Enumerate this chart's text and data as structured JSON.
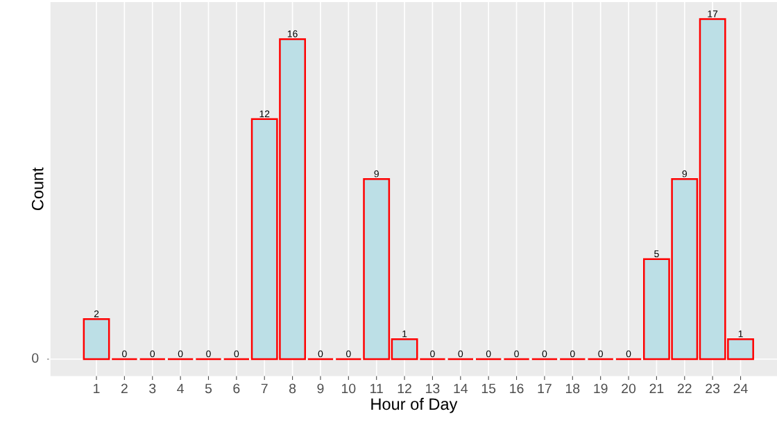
{
  "chart_data": {
    "type": "bar",
    "xlabel": "Hour of Day",
    "ylabel": "Count",
    "categories": [
      "1",
      "2",
      "3",
      "4",
      "5",
      "6",
      "7",
      "8",
      "9",
      "10",
      "11",
      "12",
      "13",
      "14",
      "15",
      "16",
      "17",
      "18",
      "19",
      "20",
      "21",
      "22",
      "23",
      "24"
    ],
    "values": [
      2,
      0,
      0,
      0,
      0,
      0,
      12,
      16,
      0,
      0,
      9,
      1,
      0,
      0,
      0,
      0,
      0,
      0,
      0,
      0,
      5,
      9,
      17,
      1
    ],
    "colors": [
      "#bcdfe6",
      "#ff0000",
      "#ff0000",
      "#ff0000",
      "#ff0000",
      "#ff0000",
      "#bcdfe6",
      "#bcdfe6",
      "#ff0000",
      "#ff0000",
      "#bcdfe6",
      "#bcdfe6",
      "#ff0000",
      "#ff0000",
      "#ff0000",
      "#ff0000",
      "#ff0000",
      "#ff0000",
      "#ff0000",
      "#ff0000",
      "#bcdfe6",
      "#bcdfe6",
      "#bcdfe6",
      "#bcdfe6"
    ],
    "annotations": [
      "0"
    ],
    "grid": true,
    "data_labels": true
  }
}
